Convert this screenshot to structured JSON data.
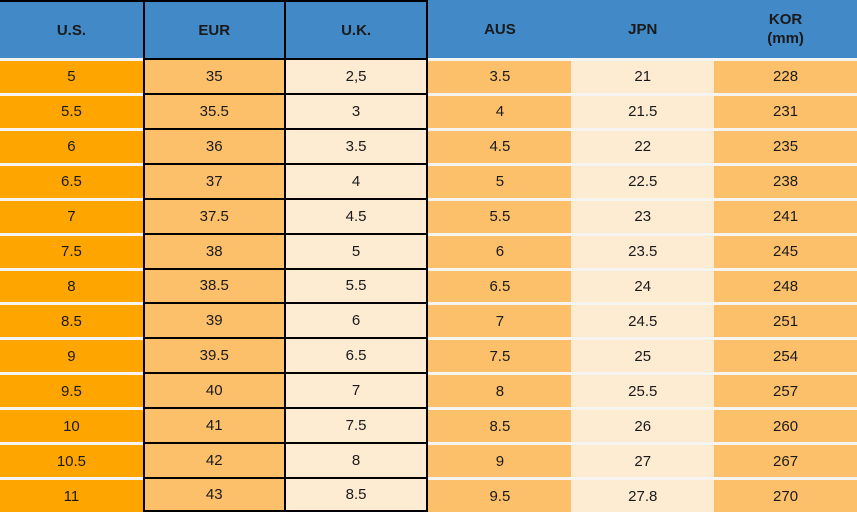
{
  "colors": {
    "header_blue": "#4189C7",
    "us_orange": "#FFA500",
    "light_orange": "#FDC06A",
    "cream": "#FDEBD2",
    "border_black": "#000000",
    "separator_white": "#F6F4F1",
    "text_black": "#1a1a1a"
  },
  "chart_data": {
    "type": "table",
    "columns": [
      "U.S.",
      "EUR",
      "U.K.",
      "AUS",
      "JPN",
      "KOR (mm)"
    ],
    "kor_header": {
      "line1": "KOR",
      "line2": "(mm)"
    },
    "rows": [
      [
        "5",
        "35",
        "2,5",
        "3.5",
        "21",
        "228"
      ],
      [
        "5.5",
        "35.5",
        "3",
        "4",
        "21.5",
        "231"
      ],
      [
        "6",
        "36",
        "3.5",
        "4.5",
        "22",
        "235"
      ],
      [
        "6.5",
        "37",
        "4",
        "5",
        "22.5",
        "238"
      ],
      [
        "7",
        "37.5",
        "4.5",
        "5.5",
        "23",
        "241"
      ],
      [
        "7.5",
        "38",
        "5",
        "6",
        "23.5",
        "245"
      ],
      [
        "8",
        "38.5",
        "5.5",
        "6.5",
        "24",
        "248"
      ],
      [
        "8.5",
        "39",
        "6",
        "7",
        "24.5",
        "251"
      ],
      [
        "9",
        "39.5",
        "6.5",
        "7.5",
        "25",
        "254"
      ],
      [
        "9.5",
        "40",
        "7",
        "8",
        "25.5",
        "257"
      ],
      [
        "10",
        "41",
        "7.5",
        "8.5",
        "26",
        "260"
      ],
      [
        "10.5",
        "42",
        "8",
        "9",
        "27",
        "267"
      ],
      [
        "11",
        "43",
        "8.5",
        "9.5",
        "27.8",
        "270"
      ]
    ]
  }
}
